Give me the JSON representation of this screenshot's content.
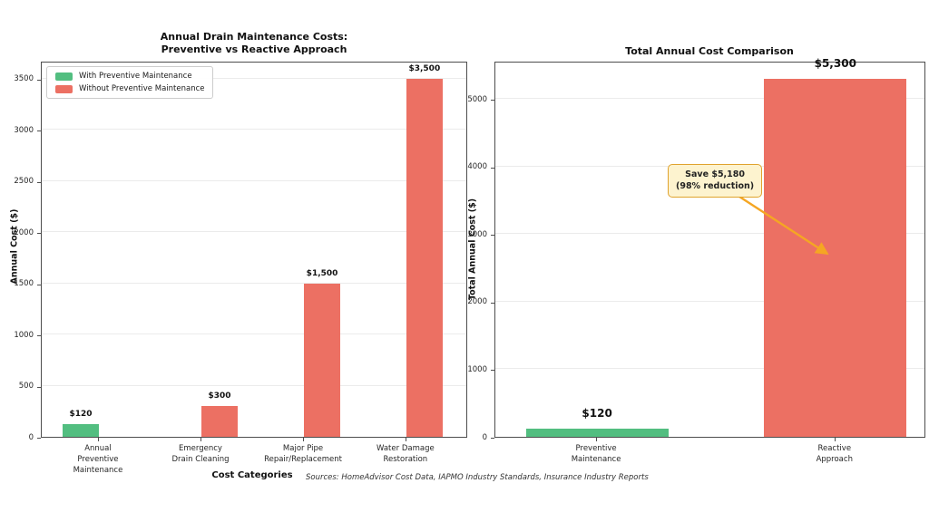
{
  "figure": {
    "footnote": "Sources: HomeAdvisor Cost Data, IAPMO Industry Standards, Insurance Industry Reports"
  },
  "chart_data": [
    {
      "type": "bar",
      "title": "Annual Drain Maintenance Costs:\nPreventive vs Reactive Approach",
      "xlabel": "Cost Categories",
      "ylabel": "Annual Cost ($)",
      "categories": [
        "Annual\nPreventive\nMaintenance",
        "Emergency\nDrain Cleaning",
        "Major Pipe\nRepair/Replacement",
        "Water Damage\nRestoration"
      ],
      "values": [
        120,
        300,
        1500,
        3500
      ],
      "bar_labels": [
        "$120",
        "$300",
        "$1,500",
        "$3,500"
      ],
      "bar_colors": [
        "#52be80",
        "#ec7063",
        "#ec7063",
        "#ec7063"
      ],
      "yticks": [
        0,
        500,
        1000,
        1500,
        2000,
        2500,
        3000,
        3500
      ],
      "ylim": [
        0,
        3675
      ],
      "grid": true,
      "legend": {
        "position": "upper-left",
        "entries": [
          {
            "label": "With Preventive Maintenance",
            "color": "#52be80"
          },
          {
            "label": "Without Preventive Maintenance",
            "color": "#ec7063"
          }
        ]
      }
    },
    {
      "type": "bar",
      "title": "Total Annual Cost Comparison",
      "xlabel": "",
      "ylabel": "Total Annual Cost ($)",
      "categories": [
        "Preventive\nMaintenance",
        "Reactive\nApproach"
      ],
      "values": [
        120,
        5300
      ],
      "bar_labels": [
        "$120",
        "$5,300"
      ],
      "bar_colors": [
        "#52be80",
        "#ec7063"
      ],
      "yticks": [
        0,
        1000,
        2000,
        3000,
        4000,
        5000
      ],
      "ylim": [
        0,
        5565
      ],
      "grid": true,
      "annotation": {
        "text": "Save $5,180\n(98% reduction)",
        "box_color": "#fdf3cf",
        "border_color": "#e0a32e",
        "arrow_color": "#f5a623"
      }
    }
  ]
}
